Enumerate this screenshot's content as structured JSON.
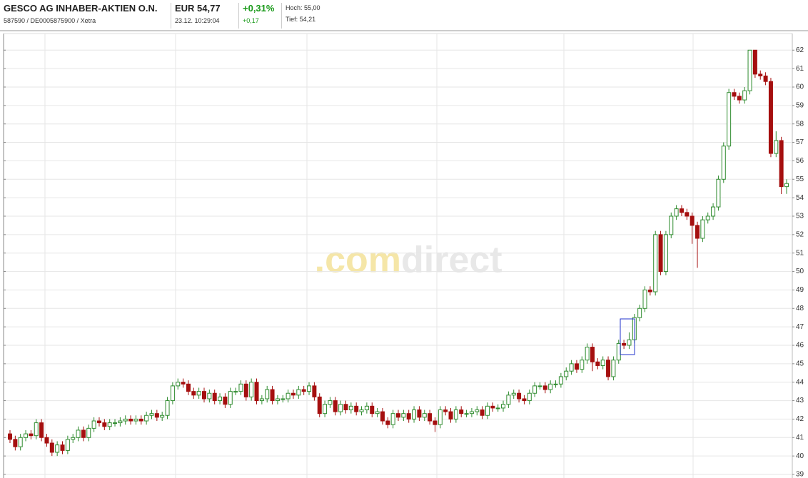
{
  "header": {
    "name": "GESCO AG INHABER-AKTIEN O.N.",
    "ids": "587590 / DE0005875900 / Xetra",
    "price": "EUR 54,77",
    "time": "23.12. 10:29:04",
    "change_pct": "+0,31%",
    "change_abs": "+0,17",
    "high": "Hoch: 55,00",
    "low": "Tief: 54,21"
  },
  "chart_data": {
    "type": "candlestick",
    "watermark": [
      ".com",
      "direct"
    ],
    "up_color": "#2e8b2e",
    "down_color": "#a50f0f",
    "ylim": [
      39,
      62.9
    ],
    "yticks": [
      39,
      40,
      41,
      42,
      43,
      44,
      45,
      46,
      47,
      48,
      49,
      50,
      51,
      52,
      53,
      54,
      55,
      56,
      57,
      58,
      59,
      60,
      61,
      62
    ],
    "grid": true,
    "candles": [
      [
        41.2,
        41.4,
        40.7,
        40.9
      ],
      [
        40.9,
        41.1,
        40.3,
        40.5
      ],
      [
        40.5,
        41.2,
        40.3,
        41.0
      ],
      [
        41.0,
        41.4,
        40.8,
        41.2
      ],
      [
        41.2,
        41.4,
        40.9,
        41.1
      ],
      [
        41.1,
        42.0,
        40.9,
        41.8
      ],
      [
        41.8,
        42.0,
        40.8,
        41.0
      ],
      [
        41.0,
        41.2,
        40.5,
        40.7
      ],
      [
        40.7,
        40.9,
        40.0,
        40.2
      ],
      [
        40.2,
        40.8,
        40.0,
        40.6
      ],
      [
        40.6,
        40.8,
        40.1,
        40.3
      ],
      [
        40.3,
        41.1,
        40.1,
        40.9
      ],
      [
        40.9,
        41.2,
        40.7,
        41.0
      ],
      [
        41.0,
        41.6,
        40.8,
        41.4
      ],
      [
        41.4,
        41.6,
        40.8,
        41.0
      ],
      [
        41.0,
        41.7,
        40.8,
        41.5
      ],
      [
        41.5,
        42.1,
        41.3,
        41.9
      ],
      [
        41.9,
        42.1,
        41.6,
        41.8
      ],
      [
        41.8,
        42.0,
        41.4,
        41.6
      ],
      [
        41.6,
        42.0,
        41.4,
        41.8
      ],
      [
        41.8,
        42.0,
        41.6,
        41.8
      ],
      [
        41.8,
        42.1,
        41.6,
        41.9
      ],
      [
        41.9,
        42.2,
        41.7,
        42.0
      ],
      [
        42.0,
        42.2,
        41.7,
        41.9
      ],
      [
        41.9,
        42.2,
        41.7,
        42.0
      ],
      [
        42.0,
        42.2,
        41.7,
        41.9
      ],
      [
        41.9,
        42.4,
        41.7,
        42.2
      ],
      [
        42.2,
        42.5,
        42.0,
        42.3
      ],
      [
        42.3,
        42.5,
        41.9,
        42.1
      ],
      [
        42.1,
        42.4,
        41.9,
        42.2
      ],
      [
        42.2,
        43.2,
        42.0,
        43.0
      ],
      [
        43.0,
        44.0,
        42.8,
        43.8
      ],
      [
        43.8,
        44.2,
        43.6,
        44.0
      ],
      [
        44.0,
        44.2,
        43.7,
        43.9
      ],
      [
        43.9,
        44.1,
        43.3,
        43.5
      ],
      [
        43.5,
        43.7,
        43.1,
        43.3
      ],
      [
        43.3,
        43.7,
        43.1,
        43.5
      ],
      [
        43.5,
        43.7,
        42.9,
        43.1
      ],
      [
        43.1,
        43.6,
        42.9,
        43.4
      ],
      [
        43.4,
        43.6,
        42.8,
        43.0
      ],
      [
        43.0,
        43.4,
        42.8,
        43.2
      ],
      [
        43.2,
        43.4,
        42.6,
        42.8
      ],
      [
        42.8,
        43.7,
        42.6,
        43.5
      ],
      [
        43.5,
        43.7,
        43.3,
        43.5
      ],
      [
        43.5,
        44.1,
        43.3,
        43.9
      ],
      [
        43.9,
        44.1,
        43.0,
        43.2
      ],
      [
        43.2,
        44.2,
        43.0,
        44.0
      ],
      [
        44.0,
        44.2,
        42.8,
        43.0
      ],
      [
        43.0,
        43.3,
        42.8,
        43.1
      ],
      [
        43.1,
        43.8,
        42.9,
        43.6
      ],
      [
        43.6,
        43.8,
        42.8,
        43.0
      ],
      [
        43.0,
        43.3,
        42.8,
        43.1
      ],
      [
        43.1,
        43.3,
        42.9,
        43.1
      ],
      [
        43.1,
        43.6,
        42.9,
        43.4
      ],
      [
        43.4,
        43.6,
        43.1,
        43.3
      ],
      [
        43.3,
        43.8,
        43.1,
        43.6
      ],
      [
        43.6,
        43.8,
        43.3,
        43.5
      ],
      [
        43.5,
        44.0,
        43.3,
        43.8
      ],
      [
        43.8,
        44.0,
        43.0,
        43.2
      ],
      [
        43.2,
        43.4,
        42.1,
        42.3
      ],
      [
        42.3,
        43.0,
        42.1,
        42.8
      ],
      [
        42.8,
        43.2,
        42.6,
        43.0
      ],
      [
        43.0,
        43.2,
        42.2,
        42.4
      ],
      [
        42.4,
        43.0,
        42.2,
        42.8
      ],
      [
        42.8,
        43.0,
        42.3,
        42.5
      ],
      [
        42.5,
        42.9,
        42.3,
        42.7
      ],
      [
        42.7,
        42.9,
        42.2,
        42.4
      ],
      [
        42.4,
        42.7,
        42.2,
        42.5
      ],
      [
        42.5,
        42.9,
        42.3,
        42.7
      ],
      [
        42.7,
        42.9,
        42.1,
        42.3
      ],
      [
        42.3,
        42.6,
        42.1,
        42.4
      ],
      [
        42.4,
        42.6,
        41.7,
        41.9
      ],
      [
        41.9,
        42.1,
        41.5,
        41.7
      ],
      [
        41.7,
        42.5,
        41.5,
        42.3
      ],
      [
        42.3,
        42.5,
        41.9,
        42.1
      ],
      [
        42.1,
        42.5,
        41.9,
        42.3
      ],
      [
        42.3,
        42.5,
        41.8,
        42.0
      ],
      [
        42.0,
        42.7,
        41.8,
        42.5
      ],
      [
        42.5,
        42.7,
        41.9,
        42.1
      ],
      [
        42.1,
        42.5,
        41.9,
        42.3
      ],
      [
        42.3,
        42.5,
        41.7,
        41.9
      ],
      [
        41.9,
        42.1,
        41.3,
        41.7
      ],
      [
        41.7,
        42.7,
        41.5,
        42.5
      ],
      [
        42.5,
        42.7,
        42.2,
        42.4
      ],
      [
        42.4,
        42.6,
        41.8,
        42.0
      ],
      [
        42.0,
        42.7,
        41.8,
        42.5
      ],
      [
        42.5,
        42.7,
        42.1,
        42.3
      ],
      [
        42.3,
        42.5,
        42.1,
        42.3
      ],
      [
        42.3,
        42.6,
        42.1,
        42.4
      ],
      [
        42.4,
        42.7,
        42.2,
        42.5
      ],
      [
        42.5,
        42.7,
        42.0,
        42.2
      ],
      [
        42.2,
        42.9,
        42.0,
        42.7
      ],
      [
        42.7,
        42.9,
        42.4,
        42.6
      ],
      [
        42.6,
        42.8,
        42.4,
        42.6
      ],
      [
        42.6,
        43.0,
        42.4,
        42.8
      ],
      [
        42.8,
        43.5,
        42.6,
        43.3
      ],
      [
        43.3,
        43.6,
        43.1,
        43.4
      ],
      [
        43.4,
        43.6,
        42.9,
        43.1
      ],
      [
        43.1,
        43.3,
        42.8,
        43.0
      ],
      [
        43.0,
        43.6,
        42.8,
        43.4
      ],
      [
        43.4,
        44.0,
        43.2,
        43.8
      ],
      [
        43.8,
        44.0,
        43.6,
        43.8
      ],
      [
        43.8,
        44.0,
        43.4,
        43.6
      ],
      [
        43.6,
        44.1,
        43.4,
        43.9
      ],
      [
        43.9,
        44.1,
        43.7,
        43.9
      ],
      [
        43.9,
        44.5,
        43.7,
        44.3
      ],
      [
        44.3,
        44.8,
        44.1,
        44.6
      ],
      [
        44.6,
        45.2,
        44.4,
        45.0
      ],
      [
        45.0,
        45.2,
        44.5,
        44.7
      ],
      [
        44.7,
        45.4,
        44.5,
        45.2
      ],
      [
        45.2,
        46.1,
        45.0,
        45.9
      ],
      [
        45.9,
        46.1,
        44.6,
        45.1
      ],
      [
        45.1,
        45.3,
        44.7,
        44.9
      ],
      [
        44.9,
        45.4,
        44.7,
        45.2
      ],
      [
        45.2,
        45.4,
        44.1,
        44.3
      ],
      [
        44.3,
        45.4,
        44.1,
        45.2
      ],
      [
        45.2,
        46.3,
        45.0,
        46.1
      ],
      [
        46.1,
        46.3,
        45.8,
        46.0
      ],
      [
        46.0,
        46.7,
        45.8,
        46.3
      ],
      [
        46.3,
        47.7,
        46.1,
        47.5
      ],
      [
        47.5,
        48.2,
        47.3,
        48.0
      ],
      [
        48.0,
        49.2,
        47.8,
        49.0
      ],
      [
        49.0,
        49.2,
        48.7,
        48.9
      ],
      [
        48.9,
        52.2,
        48.7,
        52.0
      ],
      [
        52.0,
        52.2,
        49.8,
        50.0
      ],
      [
        50.0,
        52.2,
        49.8,
        52.0
      ],
      [
        52.0,
        53.2,
        51.8,
        53.0
      ],
      [
        53.0,
        53.6,
        52.8,
        53.4
      ],
      [
        53.4,
        53.6,
        53.0,
        53.2
      ],
      [
        53.2,
        53.4,
        52.8,
        53.0
      ],
      [
        53.0,
        53.2,
        51.5,
        52.5
      ],
      [
        52.5,
        52.7,
        50.2,
        51.8
      ],
      [
        51.8,
        53.0,
        51.6,
        52.8
      ],
      [
        52.8,
        53.2,
        52.6,
        53.0
      ],
      [
        53.0,
        53.7,
        52.8,
        53.5
      ],
      [
        53.5,
        55.2,
        53.3,
        55.0
      ],
      [
        55.0,
        57.0,
        54.8,
        56.8
      ],
      [
        56.8,
        59.9,
        56.6,
        59.7
      ],
      [
        59.7,
        59.9,
        59.3,
        59.5
      ],
      [
        59.5,
        59.7,
        59.1,
        59.3
      ],
      [
        59.3,
        60.0,
        59.1,
        59.8
      ],
      [
        59.8,
        62.0,
        59.6,
        62.0
      ],
      [
        62.0,
        62.0,
        60.5,
        60.7
      ],
      [
        60.7,
        60.9,
        60.4,
        60.6
      ],
      [
        60.6,
        60.8,
        60.1,
        60.3
      ],
      [
        60.3,
        60.5,
        56.2,
        56.4
      ],
      [
        56.4,
        57.6,
        56.2,
        57.1
      ],
      [
        57.1,
        57.3,
        54.2,
        54.6
      ],
      [
        54.6,
        55.0,
        54.21,
        54.77
      ]
    ]
  }
}
